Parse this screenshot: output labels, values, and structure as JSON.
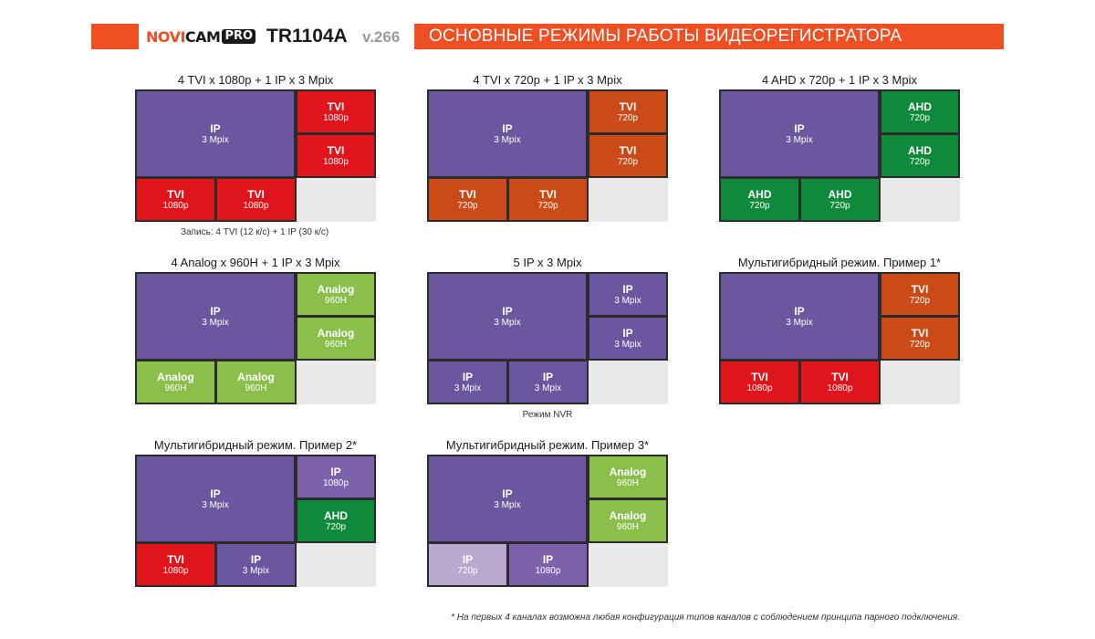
{
  "header": {
    "brand_novi": "NOVI",
    "brand_cam": "CAM",
    "brand_pro": "PRO",
    "model": "TR1104A",
    "version": "v.266",
    "title": "ОСНОВНЫЕ РЕЖИМЫ РАБОТЫ ВИДЕОРЕГИСТРАТОРА"
  },
  "colors": {
    "accent": "#f04e23",
    "ip": "#6a57a0",
    "ip_light": "#7c62ab",
    "ip_pale": "#b9a9cf",
    "tvi1080": "#e0141b",
    "tvi720": "#cc4a17",
    "ahd": "#0e8a3a",
    "analog": "#8bbf4c",
    "empty": "#e9e9e9"
  },
  "modes": [
    {
      "title": "4 TVI x 1080p + 1 IP x 3 Mpix",
      "big": {
        "t1": "IP",
        "t2": "3 Mpix",
        "color": "ip"
      },
      "right_top": {
        "t1": "TVI",
        "t2": "1080p",
        "color": "tvi1080"
      },
      "right_mid": {
        "t1": "TVI",
        "t2": "1080p",
        "color": "tvi1080"
      },
      "bottom_left": {
        "t1": "TVI",
        "t2": "1080p",
        "color": "tvi1080"
      },
      "bottom_mid": {
        "t1": "TVI",
        "t2": "1080p",
        "color": "tvi1080"
      },
      "note": "Запись: 4 TVI (12 к/с) + 1 IP (30 к/с)"
    },
    {
      "title": "4 TVI x 720p + 1 IP x 3 Mpix",
      "big": {
        "t1": "IP",
        "t2": "3 Mpix",
        "color": "ip"
      },
      "right_top": {
        "t1": "TVI",
        "t2": "720p",
        "color": "tvi720"
      },
      "right_mid": {
        "t1": "TVI",
        "t2": "720p",
        "color": "tvi720"
      },
      "bottom_left": {
        "t1": "TVI",
        "t2": "720p",
        "color": "tvi720"
      },
      "bottom_mid": {
        "t1": "TVI",
        "t2": "720p",
        "color": "tvi720"
      },
      "note": ""
    },
    {
      "title": "4 AHD x 720p + 1 IP x 3 Mpix",
      "big": {
        "t1": "IP",
        "t2": "3 Mpix",
        "color": "ip"
      },
      "right_top": {
        "t1": "AHD",
        "t2": "720p",
        "color": "ahd"
      },
      "right_mid": {
        "t1": "AHD",
        "t2": "720p",
        "color": "ahd"
      },
      "bottom_left": {
        "t1": "AHD",
        "t2": "720p",
        "color": "ahd"
      },
      "bottom_mid": {
        "t1": "AHD",
        "t2": "720p",
        "color": "ahd"
      },
      "note": ""
    },
    {
      "title": "4 Analog x 960H + 1 IP x 3 Mpix",
      "big": {
        "t1": "IP",
        "t2": "3 Mpix",
        "color": "ip"
      },
      "right_top": {
        "t1": "Analog",
        "t2": "960H",
        "color": "analog"
      },
      "right_mid": {
        "t1": "Analog",
        "t2": "960H",
        "color": "analog"
      },
      "bottom_left": {
        "t1": "Analog",
        "t2": "960H",
        "color": "analog"
      },
      "bottom_mid": {
        "t1": "Analog",
        "t2": "960H",
        "color": "analog"
      },
      "note": ""
    },
    {
      "title": "5 IP x 3 Mpix",
      "big": {
        "t1": "IP",
        "t2": "3 Mpix",
        "color": "ip"
      },
      "right_top": {
        "t1": "IP",
        "t2": "3 Mpix",
        "color": "ip"
      },
      "right_mid": {
        "t1": "IP",
        "t2": "3 Mpix",
        "color": "ip"
      },
      "bottom_left": {
        "t1": "IP",
        "t2": "3 Mpix",
        "color": "ip"
      },
      "bottom_mid": {
        "t1": "IP",
        "t2": "3 Mpix",
        "color": "ip"
      },
      "note": "Режим NVR"
    },
    {
      "title": "Мультигибридный режим. Пример 1*",
      "big": {
        "t1": "IP",
        "t2": "3 Mpix",
        "color": "ip"
      },
      "right_top": {
        "t1": "TVI",
        "t2": "720p",
        "color": "tvi720"
      },
      "right_mid": {
        "t1": "TVI",
        "t2": "720p",
        "color": "tvi720"
      },
      "bottom_left": {
        "t1": "TVI",
        "t2": "1080p",
        "color": "tvi1080"
      },
      "bottom_mid": {
        "t1": "TVI",
        "t2": "1080p",
        "color": "tvi1080"
      },
      "note": ""
    },
    {
      "title": "Мультигибридный режим. Пример 2*",
      "big": {
        "t1": "IP",
        "t2": "3 Mpix",
        "color": "ip"
      },
      "right_top": {
        "t1": "IP",
        "t2": "1080p",
        "color": "ip_light"
      },
      "right_mid": {
        "t1": "AHD",
        "t2": "720p",
        "color": "ahd"
      },
      "bottom_left": {
        "t1": "TVI",
        "t2": "1080p",
        "color": "tvi1080"
      },
      "bottom_mid": {
        "t1": "IP",
        "t2": "3 Mpix",
        "color": "ip"
      },
      "note": ""
    },
    {
      "title": "Мультигибридный режим. Пример 3*",
      "big": {
        "t1": "IP",
        "t2": "3 Mpix",
        "color": "ip"
      },
      "right_top": {
        "t1": "Analog",
        "t2": "960H",
        "color": "analog"
      },
      "right_mid": {
        "t1": "Analog",
        "t2": "960H",
        "color": "analog"
      },
      "bottom_left": {
        "t1": "IP",
        "t2": "720p",
        "color": "ip_pale"
      },
      "bottom_mid": {
        "t1": "IP",
        "t2": "1080p",
        "color": "ip_light"
      },
      "note": ""
    }
  ],
  "footnote": "* На первых 4 каналах возможна любая конфигурация типов каналов с соблюдением принципа парного подключения."
}
